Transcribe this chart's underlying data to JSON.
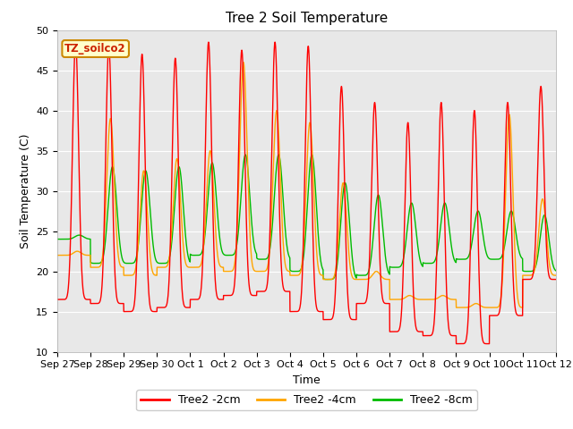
{
  "title": "Tree 2 Soil Temperature",
  "ylabel": "Soil Temperature (C)",
  "xlabel": "Time",
  "ylim": [
    10,
    50
  ],
  "yticks": [
    10,
    15,
    20,
    25,
    30,
    35,
    40,
    45,
    50
  ],
  "xtick_labels": [
    "Sep 27",
    "Sep 28",
    "Sep 29",
    "Sep 30",
    "Oct 1",
    "Oct 2",
    "Oct 3",
    "Oct 4",
    "Oct 5",
    "Oct 6",
    "Oct 7",
    "Oct 8",
    "Oct 9",
    "Oct 10",
    "Oct 11",
    "Oct 12"
  ],
  "legend_label": "TZ_soilco2",
  "series_labels": [
    "Tree2 -2cm",
    "Tree2 -4cm",
    "Tree2 -8cm"
  ],
  "colors": [
    "#FF0000",
    "#FFA500",
    "#00BB00"
  ],
  "background_color": "#E8E8E8",
  "fig_background": "#FFFFFF",
  "title_fontsize": 11,
  "axis_label_fontsize": 9,
  "tick_fontsize": 8,
  "legend_fontsize": 9,
  "red_peaks": [
    48.5,
    48.0,
    47.0,
    46.5,
    48.5,
    47.5,
    48.5,
    48.0,
    43.0,
    41.0,
    38.5,
    41.0,
    40.0,
    41.0,
    43.0
  ],
  "red_mins": [
    16.5,
    16.0,
    15.0,
    15.5,
    16.5,
    17.0,
    17.5,
    15.0,
    14.0,
    16.0,
    12.5,
    12.0,
    11.0,
    14.5,
    19.0
  ],
  "red_peak_pos": [
    0.55,
    0.55,
    0.55,
    0.55,
    0.55,
    0.55,
    0.55,
    0.55,
    0.55,
    0.55,
    0.55,
    0.55,
    0.55,
    0.55,
    0.55
  ],
  "orange_peaks": [
    22.5,
    39.0,
    32.5,
    34.0,
    35.0,
    46.0,
    40.0,
    38.5,
    31.0,
    20.0,
    17.0,
    17.0,
    16.0,
    39.5,
    29.0
  ],
  "orange_mins": [
    22.0,
    20.5,
    19.5,
    20.5,
    20.5,
    20.0,
    20.0,
    19.5,
    19.0,
    19.0,
    16.5,
    16.5,
    15.5,
    15.5,
    19.5
  ],
  "green_peaks": [
    24.5,
    33.0,
    32.5,
    33.0,
    33.5,
    34.5,
    34.5,
    34.5,
    31.0,
    29.5,
    28.5,
    28.5,
    27.5,
    27.5,
    27.0
  ],
  "green_mins": [
    24.0,
    21.0,
    21.0,
    21.0,
    22.0,
    22.0,
    21.5,
    20.0,
    19.0,
    19.5,
    20.5,
    21.0,
    21.5,
    21.5,
    20.0
  ],
  "n_days": 15,
  "pts_per_day": 200,
  "sharpness": 6.0
}
